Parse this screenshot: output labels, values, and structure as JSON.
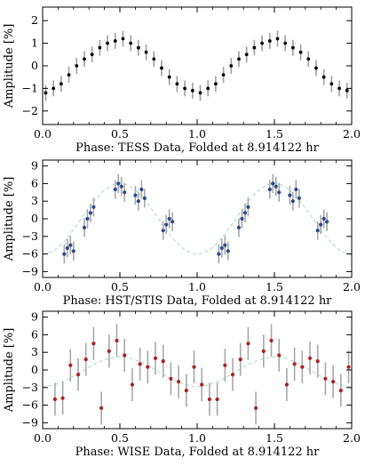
{
  "chart_data": [
    {
      "type": "scatter",
      "xlabel": "Phase:  TESS Data, Folded at 8.914122 hr",
      "ylabel": "Amplitude [%]",
      "xlim": [
        0,
        2
      ],
      "ylim": [
        -2.6,
        2.6
      ],
      "xticks": [
        "0.0",
        "0.5",
        "1.0",
        "1.5",
        "2.0"
      ],
      "yticks": [
        "-2",
        "-1",
        "0",
        "1",
        "2"
      ],
      "grid": false,
      "colors": {
        "points": "#000000",
        "errorbars": "#9e9e9e"
      },
      "model": {
        "amplitude": 1.1,
        "peak_phase": 0.5
      },
      "series": [
        {
          "x": [
            0.02,
            0.07,
            0.12,
            0.17,
            0.22,
            0.27,
            0.32,
            0.37,
            0.42,
            0.47,
            0.52,
            0.57,
            0.62,
            0.67,
            0.72,
            0.77,
            0.82,
            0.87,
            0.92,
            0.97,
            1.02,
            1.07,
            1.12,
            1.17,
            1.22,
            1.27,
            1.32,
            1.37,
            1.42,
            1.47,
            1.52,
            1.57,
            1.62,
            1.67,
            1.72,
            1.77,
            1.82,
            1.87,
            1.92,
            1.97
          ],
          "y": [
            -1.2,
            -1.0,
            -0.8,
            -0.4,
            0.0,
            0.3,
            0.5,
            0.8,
            1.0,
            1.1,
            1.2,
            1.0,
            0.8,
            0.6,
            0.3,
            -0.1,
            -0.5,
            -0.8,
            -1.0,
            -1.1,
            -1.2,
            -1.0,
            -0.8,
            -0.4,
            0.0,
            0.3,
            0.5,
            0.8,
            1.0,
            1.1,
            1.2,
            1.0,
            0.8,
            0.6,
            0.3,
            -0.1,
            -0.5,
            -0.8,
            -1.0,
            -1.1
          ]
        }
      ]
    },
    {
      "type": "scatter",
      "xlabel": "Phase:  HST/STIS Data, Folded at 8.914122 hr",
      "ylabel": "Amplitude [%]",
      "xlim": [
        0,
        2
      ],
      "ylim": [
        -10,
        10
      ],
      "xticks": [
        "0.0",
        "0.5",
        "1.0",
        "1.5",
        "2.0"
      ],
      "yticks": [
        "-9",
        "-6",
        "-3",
        "0",
        "3",
        "6",
        "9"
      ],
      "grid": false,
      "colors": {
        "points": "#2b4a8c",
        "errorbars": "#a8a8a8",
        "model": "#a8d8c8"
      },
      "model": {
        "amplitude": 6.0,
        "peak_phase": 0.5,
        "offset": 0.0
      },
      "series": [
        {
          "x": [
            0.14,
            0.16,
            0.18,
            0.2,
            0.27,
            0.29,
            0.31,
            0.33,
            0.47,
            0.49,
            0.51,
            0.53,
            0.6,
            0.62,
            0.64,
            0.66,
            0.78,
            0.8,
            0.82,
            0.84,
            1.14,
            1.16,
            1.18,
            1.2,
            1.27,
            1.29,
            1.31,
            1.33,
            1.47,
            1.49,
            1.51,
            1.53,
            1.6,
            1.62,
            1.64,
            1.66,
            1.78,
            1.8,
            1.82,
            1.84
          ],
          "y": [
            -6.0,
            -5.0,
            -4.5,
            -5.5,
            -1.5,
            0.0,
            1.0,
            2.0,
            5.0,
            6.0,
            5.5,
            4.5,
            4.0,
            3.0,
            5.0,
            3.5,
            -2.0,
            -1.0,
            0.0,
            -0.5,
            -6.0,
            -5.0,
            -4.5,
            -5.5,
            -1.5,
            0.0,
            1.0,
            2.0,
            5.0,
            6.0,
            5.5,
            4.5,
            4.0,
            3.0,
            5.0,
            3.5,
            -2.0,
            -1.0,
            0.0,
            -0.5
          ]
        }
      ]
    },
    {
      "type": "scatter",
      "xlabel": "Phase:  WISE Data, Folded at 8.914122 hr",
      "ylabel": "Amplitude [%]",
      "xlim": [
        0,
        2
      ],
      "ylim": [
        -10,
        10
      ],
      "xticks": [
        "0.0",
        "0.5",
        "1.0",
        "1.5",
        "2.0"
      ],
      "yticks": [
        "-9",
        "-6",
        "-3",
        "0",
        "3",
        "6",
        "9"
      ],
      "grid": false,
      "colors": {
        "points": "#b02020",
        "errorbars": "#a8a8a8",
        "model": "#a8d8c8"
      },
      "model": {
        "amplitude": 2.5,
        "peak_phase": 0.5,
        "offset": -0.3
      },
      "series": [
        {
          "x": [
            0.08,
            0.13,
            0.18,
            0.23,
            0.28,
            0.33,
            0.38,
            0.43,
            0.48,
            0.53,
            0.58,
            0.63,
            0.68,
            0.73,
            0.78,
            0.83,
            0.88,
            0.93,
            0.98,
            1.03,
            1.08,
            1.13,
            1.18,
            1.23,
            1.28,
            1.33,
            1.38,
            1.43,
            1.48,
            1.53,
            1.58,
            1.63,
            1.68,
            1.73,
            1.78,
            1.83,
            1.88,
            1.93,
            1.98
          ],
          "y": [
            -5.0,
            -4.8,
            0.8,
            -0.8,
            1.8,
            4.5,
            -6.5,
            3.2,
            5.0,
            2.5,
            -2.5,
            1.0,
            0.5,
            2.0,
            1.5,
            -1.5,
            -2.0,
            -3.5,
            0.5,
            -2.5,
            -5.0,
            -5.0,
            0.8,
            -0.8,
            1.8,
            4.5,
            -6.5,
            3.2,
            5.0,
            2.5,
            -2.5,
            1.0,
            0.5,
            2.0,
            1.5,
            -1.5,
            -2.0,
            -3.5,
            0.5
          ]
        }
      ]
    }
  ]
}
